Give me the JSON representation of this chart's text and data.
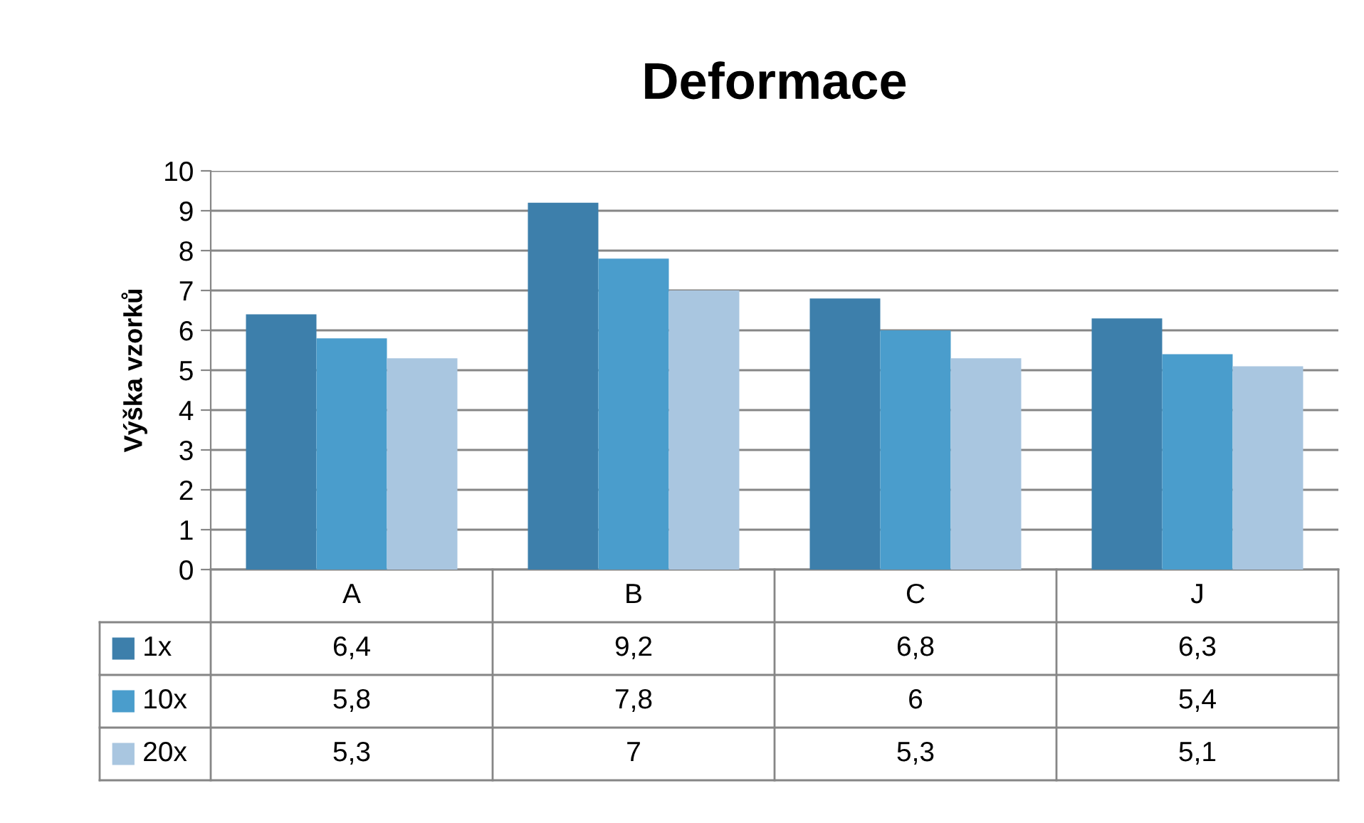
{
  "chart_data": {
    "type": "bar",
    "title": "Deformace",
    "ylabel": "Výška vzorků",
    "categories": [
      "A",
      "B",
      "C",
      "J"
    ],
    "series": [
      {
        "name": "1x",
        "color": "#3d7fab",
        "values": [
          6.4,
          9.2,
          6.8,
          6.3
        ],
        "value_labels": [
          "6,4",
          "9,2",
          "6,8",
          "6,3"
        ]
      },
      {
        "name": "10x",
        "color": "#4a9dcc",
        "values": [
          5.8,
          7.8,
          6,
          5.4
        ],
        "value_labels": [
          "5,8",
          "7,8",
          "6",
          "5,4"
        ]
      },
      {
        "name": "20x",
        "color": "#a9c6e0",
        "values": [
          5.3,
          7,
          5.3,
          5.1
        ],
        "value_labels": [
          "5,3",
          "7",
          "5,3",
          "5,1"
        ]
      }
    ],
    "ylim": [
      0,
      10
    ],
    "yticks": [
      0,
      1,
      2,
      3,
      4,
      5,
      6,
      7,
      8,
      9,
      10
    ],
    "grid": "y",
    "legend": "bottom left"
  }
}
